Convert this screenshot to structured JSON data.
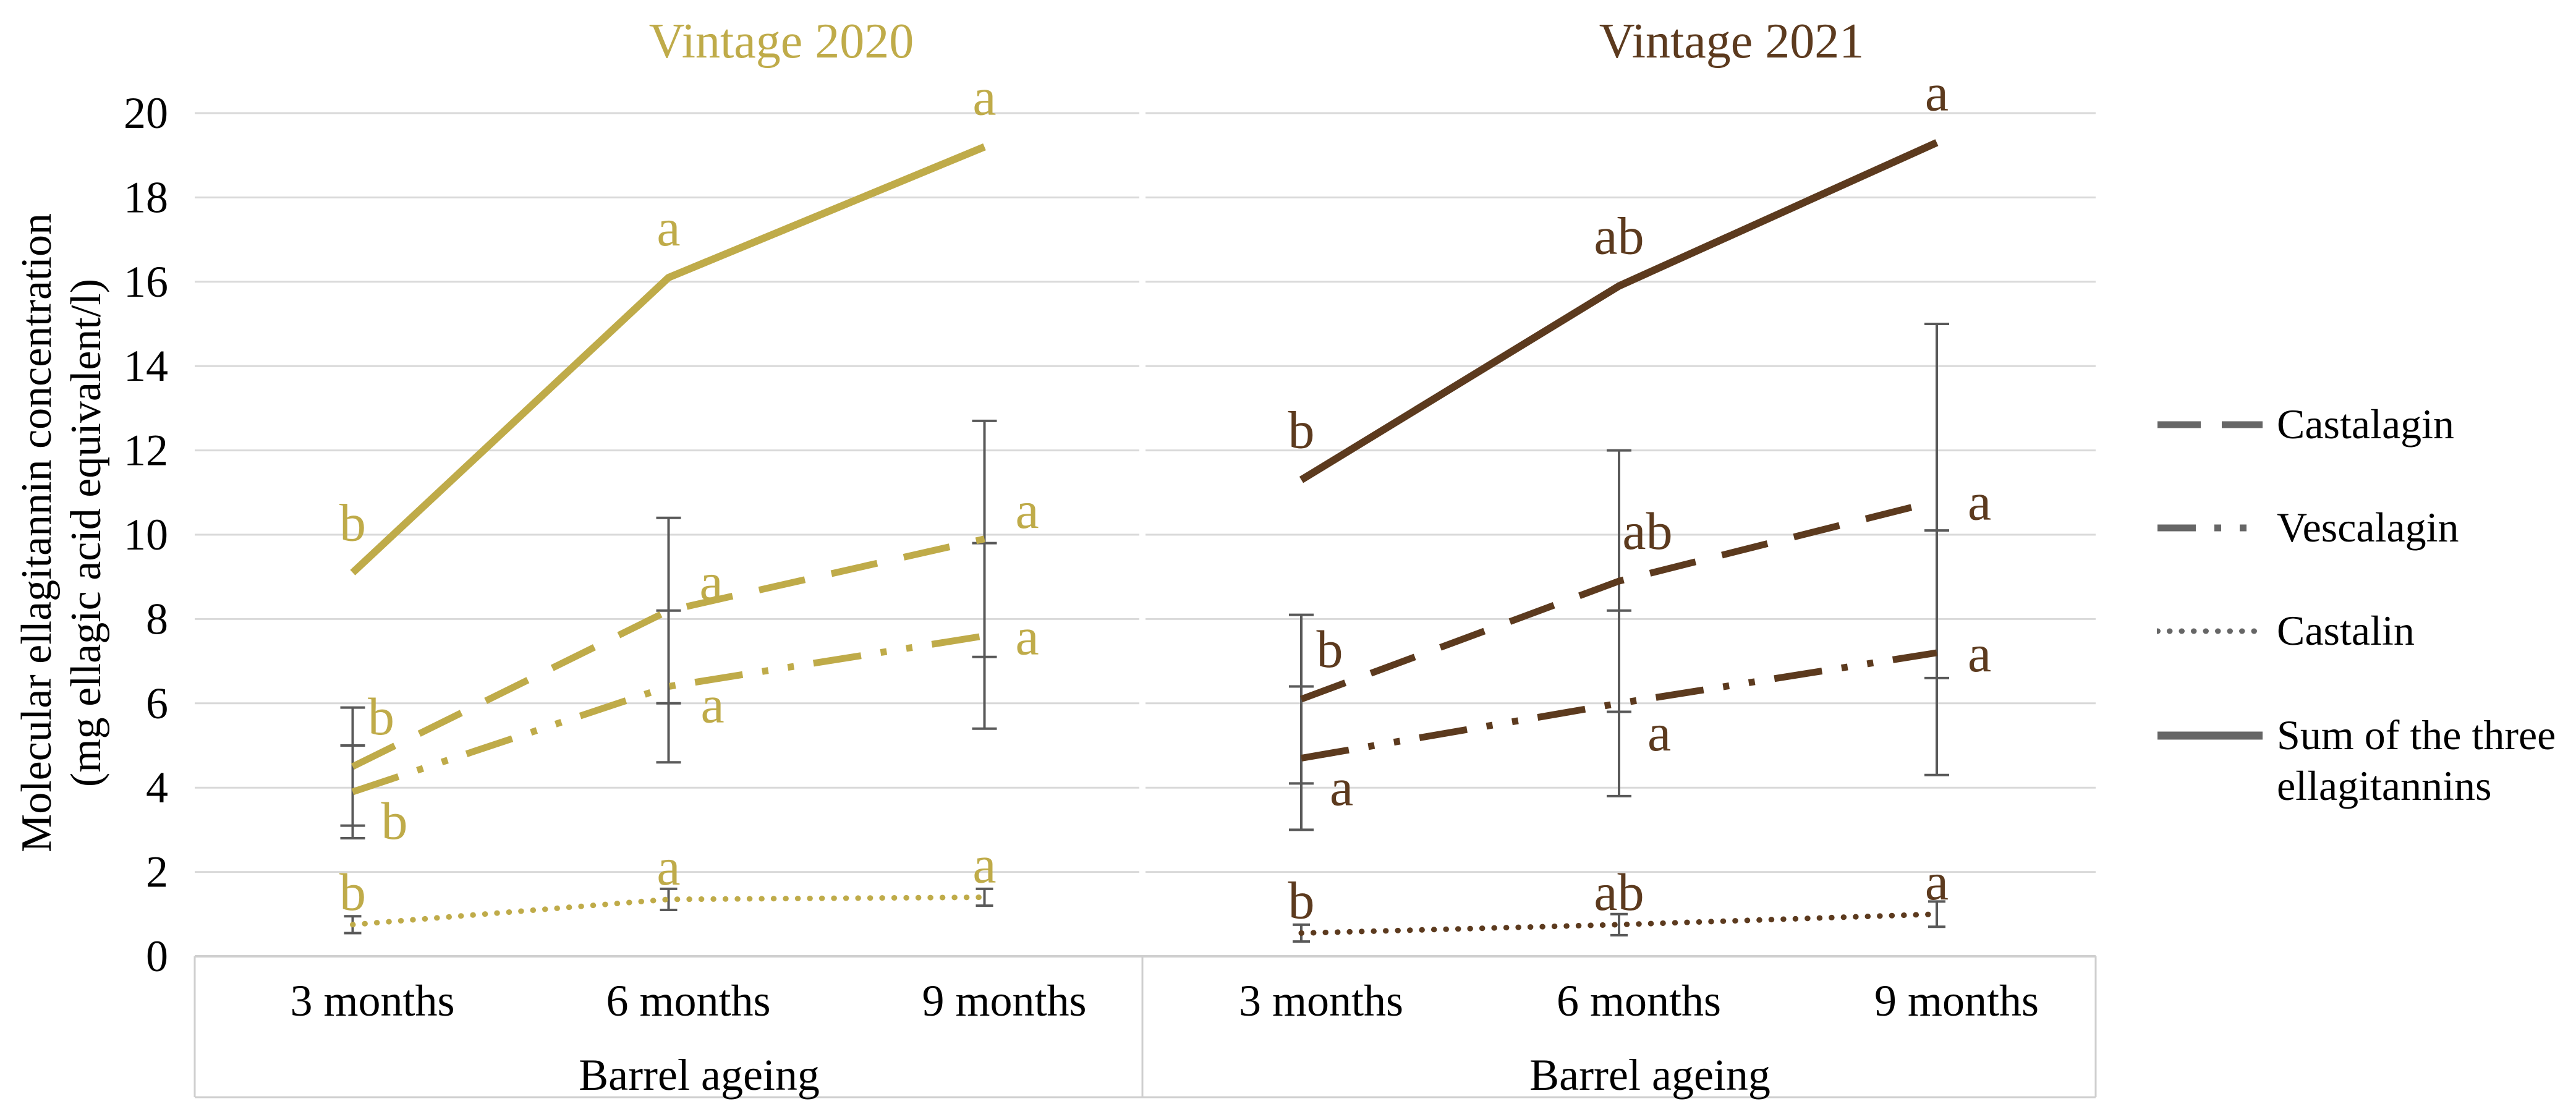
{
  "figure": {
    "y_axis_title_line1": "Molecular ellagitannin concentration",
    "y_axis_title_line2": "(mg ellagic acid equivalent/l)",
    "colors": {
      "gold": "#bfab49",
      "brown": "#5c3a1e",
      "gridline": "#d9d9d9",
      "box_border": "#cfcfcf",
      "error_bar": "#595959",
      "legend_line": "#666666",
      "text": "#000000"
    }
  },
  "legend": {
    "items": [
      {
        "label": "Castalagin",
        "style": "dashed"
      },
      {
        "label": "Vescalagin",
        "style": "dash-dot-dot"
      },
      {
        "label": "Castalin",
        "style": "dotted"
      },
      {
        "label": "Sum of the three ellagitannins",
        "style": "solid"
      }
    ]
  },
  "chart_data": [
    {
      "type": "line",
      "title": "Vintage 2020",
      "color": "#bfab49",
      "xlabel": "Barrel ageing",
      "categories": [
        "3 months",
        "6 months",
        "9 months"
      ],
      "ylim": [
        0,
        20
      ],
      "ytick_step": 2,
      "grid": true,
      "legend_position": "right",
      "series": [
        {
          "name": "Castalin",
          "style": "dotted",
          "values": [
            0.75,
            1.35,
            1.4
          ],
          "errors": [
            0.2,
            0.25,
            0.2
          ],
          "letters": [
            "b",
            "a",
            "a"
          ],
          "letter_pos": [
            "above-sm",
            "above-sm",
            "above-sm"
          ]
        },
        {
          "name": "Vescalagin",
          "style": "dash-dot-dot",
          "values": [
            3.9,
            6.4,
            7.6
          ],
          "errors": [
            1.1,
            1.8,
            2.2
          ],
          "letters": [
            "b",
            "a",
            "a"
          ],
          "letter_pos": [
            "below-right",
            "right-below",
            "right"
          ]
        },
        {
          "name": "Castalagin",
          "style": "dashed",
          "values": [
            4.5,
            8.2,
            9.9
          ],
          "errors": [
            1.4,
            2.2,
            2.8
          ],
          "letters": [
            "b",
            "a",
            "a"
          ],
          "letter_pos": [
            "above-right",
            "right-above",
            "right-above"
          ]
        },
        {
          "name": "Sum of the three ellagitannins",
          "style": "solid",
          "values": [
            9.1,
            16.1,
            19.2
          ],
          "errors": null,
          "letters": [
            "b",
            "a",
            "a"
          ],
          "letter_pos": [
            "above",
            "above",
            "above"
          ]
        }
      ]
    },
    {
      "type": "line",
      "title": "Vintage 2021",
      "color": "#5c3a1e",
      "xlabel": "Barrel ageing",
      "categories": [
        "3 months",
        "6 months",
        "9 months"
      ],
      "ylim": [
        0,
        20
      ],
      "ytick_step": 2,
      "grid": true,
      "legend_position": "right",
      "series": [
        {
          "name": "Castalin",
          "style": "dotted",
          "values": [
            0.55,
            0.75,
            1.0
          ],
          "errors": [
            0.2,
            0.25,
            0.3
          ],
          "letters": [
            "b",
            "ab",
            "a"
          ],
          "letter_pos": [
            "above-sm",
            "above-sm",
            "above-sm"
          ]
        },
        {
          "name": "Vescalagin",
          "style": "dash-dot-dot",
          "values": [
            4.7,
            6.0,
            7.2
          ],
          "errors": [
            1.7,
            2.2,
            2.9
          ],
          "letters": [
            "a",
            "a",
            "a"
          ],
          "letter_pos": [
            "below-right",
            "below-right",
            "right"
          ]
        },
        {
          "name": "Castalagin",
          "style": "dashed",
          "values": [
            6.1,
            8.9,
            10.8
          ],
          "errors": [
            2.0,
            3.1,
            4.2
          ],
          "letters": [
            "b",
            "ab",
            "a"
          ],
          "letter_pos": [
            "above-right",
            "above-right",
            "right"
          ]
        },
        {
          "name": "Sum of the three ellagitannins",
          "style": "solid",
          "values": [
            11.3,
            15.9,
            19.3
          ],
          "errors": null,
          "letters": [
            "b",
            "ab",
            "a"
          ],
          "letter_pos": [
            "above",
            "above",
            "above"
          ]
        }
      ]
    }
  ]
}
